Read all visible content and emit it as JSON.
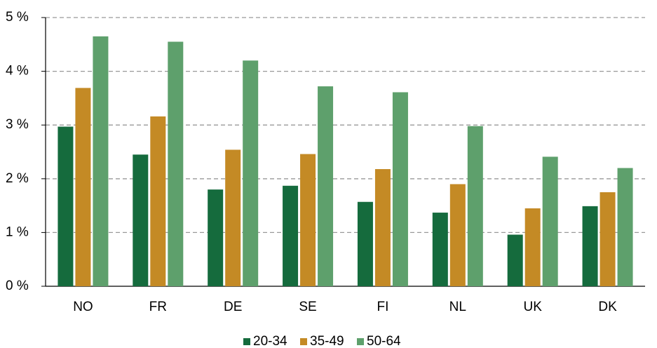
{
  "chart_data": {
    "type": "bar",
    "categories": [
      "NO",
      "FR",
      "DE",
      "SE",
      "FI",
      "NL",
      "UK",
      "DK"
    ],
    "series": [
      {
        "name": "20-34",
        "color": "#156b3d",
        "values": [
          2.97,
          2.45,
          1.8,
          1.87,
          1.57,
          1.37,
          0.96,
          1.49
        ]
      },
      {
        "name": "35-49",
        "color": "#c48a25",
        "values": [
          3.69,
          3.16,
          2.54,
          2.46,
          2.18,
          1.9,
          1.45,
          1.75
        ]
      },
      {
        "name": "50-64",
        "color": "#5ea06c",
        "values": [
          4.65,
          4.55,
          4.2,
          3.72,
          3.61,
          2.98,
          2.41,
          2.2
        ]
      }
    ],
    "ylim": [
      0,
      5
    ],
    "yticks": [
      {
        "value": 0,
        "label": "0 %"
      },
      {
        "value": 1,
        "label": "1 %"
      },
      {
        "value": 2,
        "label": "2 %"
      },
      {
        "value": 3,
        "label": "3 %"
      },
      {
        "value": 4,
        "label": "4 %"
      },
      {
        "value": 5,
        "label": "5 %"
      }
    ],
    "grid": true,
    "legend": "bottom"
  }
}
